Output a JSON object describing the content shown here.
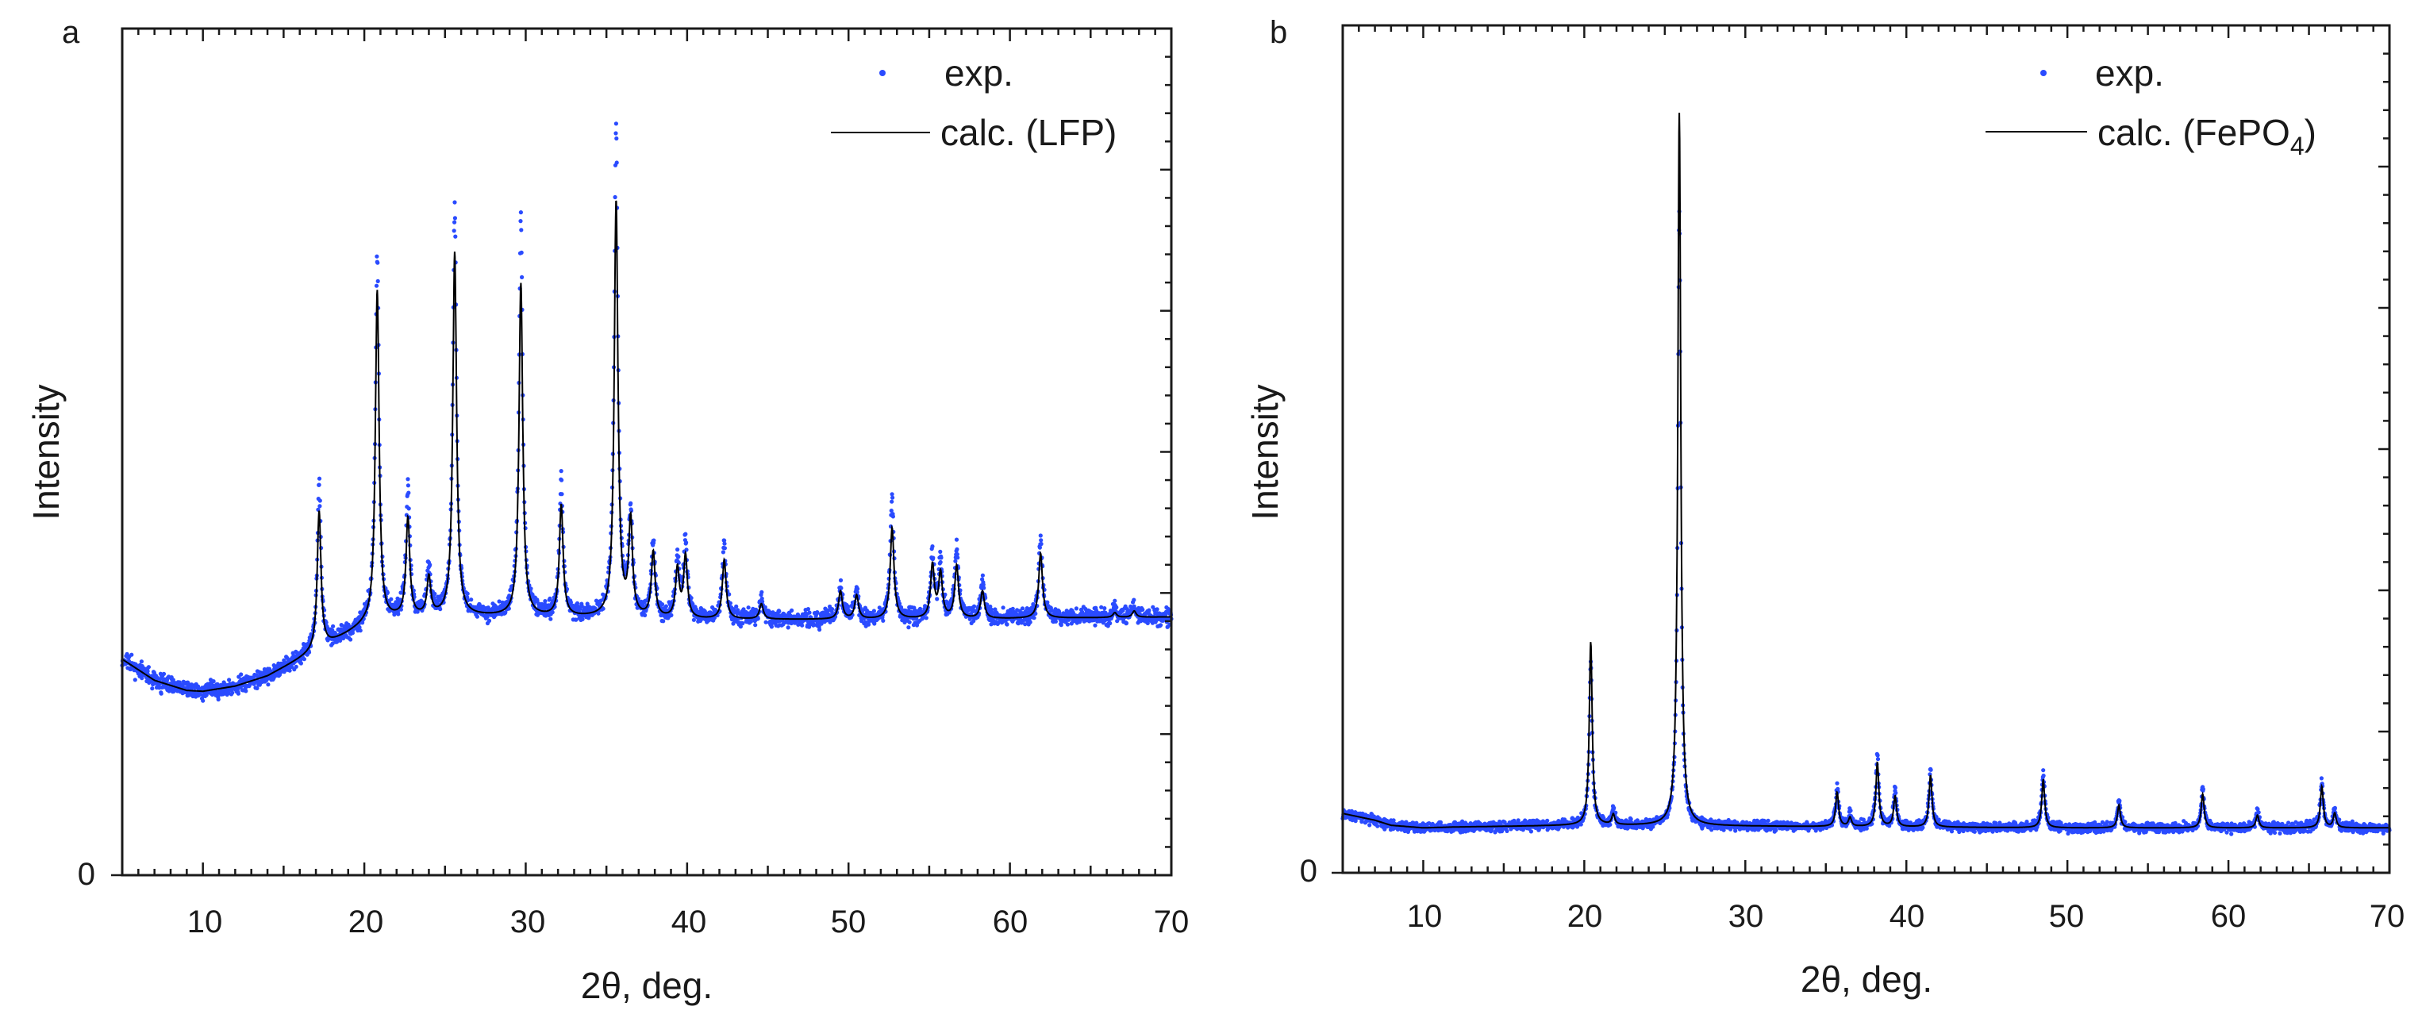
{
  "colors": {
    "exp": "#2a4bff",
    "calc": "#000000",
    "axis": "#1a1a1a"
  },
  "chart_data": [
    {
      "type": "scatter",
      "panel_label": "a",
      "title": "",
      "xlabel": "2θ, deg.",
      "ylabel": "Intensity",
      "xlim": [
        5,
        70
      ],
      "ylim": [
        0,
        100
      ],
      "xticks": [
        10,
        20,
        30,
        40,
        50,
        60,
        70
      ],
      "yticks": [
        0
      ],
      "legend_position": "top-right",
      "legend": {
        "exp": "exp.",
        "calc_prefix": "calc. (LFP)",
        "calc_sub": "",
        "calc_suffix": ""
      },
      "baseline": {
        "x": [
          5,
          7,
          9,
          10,
          12,
          14,
          16,
          18,
          20,
          22,
          25,
          30,
          35,
          40,
          50,
          60,
          70
        ],
        "y": [
          25.5,
          23.0,
          21.8,
          21.7,
          22.3,
          23.5,
          25.5,
          27.5,
          29.5,
          30.3,
          30.6,
          30.5,
          30.4,
          30.2,
          30.2,
          30.3,
          30.5
        ]
      },
      "peaks": [
        {
          "pos": 17.2,
          "calc": 43.0,
          "exp": 46.0
        },
        {
          "pos": 20.8,
          "calc": 69.0,
          "exp": 73.0
        },
        {
          "pos": 22.7,
          "calc": 42.0,
          "exp": 45.5
        },
        {
          "pos": 24.0,
          "calc": 35.0,
          "exp": 36.5
        },
        {
          "pos": 25.6,
          "calc": 73.5,
          "exp": 79.0
        },
        {
          "pos": 29.7,
          "calc": 69.8,
          "exp": 77.0
        },
        {
          "pos": 32.2,
          "calc": 43.6,
          "exp": 46.5
        },
        {
          "pos": 35.6,
          "calc": 79.5,
          "exp": 88.3
        },
        {
          "pos": 36.5,
          "calc": 41.5,
          "exp": 42.5
        },
        {
          "pos": 37.9,
          "calc": 38.0,
          "exp": 39.0
        },
        {
          "pos": 39.4,
          "calc": 36.0,
          "exp": 37.5
        },
        {
          "pos": 39.9,
          "calc": 37.5,
          "exp": 39.0
        },
        {
          "pos": 42.3,
          "calc": 37.2,
          "exp": 39.0
        },
        {
          "pos": 44.6,
          "calc": 32.0,
          "exp": 32.5
        },
        {
          "pos": 49.5,
          "calc": 33.5,
          "exp": 34.0
        },
        {
          "pos": 50.5,
          "calc": 33.0,
          "exp": 33.5
        },
        {
          "pos": 52.7,
          "calc": 41.0,
          "exp": 44.5
        },
        {
          "pos": 55.2,
          "calc": 36.5,
          "exp": 37.5
        },
        {
          "pos": 55.7,
          "calc": 35.5,
          "exp": 36.5
        },
        {
          "pos": 56.7,
          "calc": 36.5,
          "exp": 39.0
        },
        {
          "pos": 58.3,
          "calc": 33.5,
          "exp": 34.5
        },
        {
          "pos": 61.9,
          "calc": 38.0,
          "exp": 39.5
        },
        {
          "pos": 66.5,
          "calc": 31.0,
          "exp": 31.5
        },
        {
          "pos": 67.7,
          "calc": 31.2,
          "exp": 31.7
        }
      ]
    },
    {
      "type": "scatter",
      "panel_label": "b",
      "title": "",
      "xlabel": "2θ, deg.",
      "ylabel": "Intensity",
      "xlim": [
        5,
        70
      ],
      "ylim": [
        0,
        100
      ],
      "xticks": [
        10,
        20,
        30,
        40,
        50,
        60,
        70
      ],
      "yticks": [
        0
      ],
      "legend_position": "top-right",
      "legend": {
        "exp": "exp.",
        "calc_prefix": "calc. (FePO",
        "calc_sub": "4",
        "calc_suffix": ")"
      },
      "baseline": {
        "x": [
          5,
          6,
          7,
          8,
          10,
          12,
          20,
          30,
          40,
          50,
          60,
          70
        ],
        "y": [
          7.0,
          6.6,
          6.2,
          5.6,
          5.3,
          5.4,
          5.6,
          5.5,
          5.4,
          5.3,
          5.3,
          5.3
        ]
      },
      "peaks": [
        {
          "pos": 20.4,
          "calc": 27.2,
          "exp": 25.0
        },
        {
          "pos": 21.8,
          "calc": 6.8,
          "exp": 7.5
        },
        {
          "pos": 25.9,
          "calc": 89.7,
          "exp": 78.0
        },
        {
          "pos": 35.7,
          "calc": 9.5,
          "exp": 10.0
        },
        {
          "pos": 36.5,
          "calc": 6.5,
          "exp": 7.0
        },
        {
          "pos": 38.2,
          "calc": 13.0,
          "exp": 14.0
        },
        {
          "pos": 39.3,
          "calc": 9.0,
          "exp": 9.8
        },
        {
          "pos": 41.5,
          "calc": 11.5,
          "exp": 12.2
        },
        {
          "pos": 48.5,
          "calc": 11.0,
          "exp": 11.8
        },
        {
          "pos": 53.2,
          "calc": 8.0,
          "exp": 8.5
        },
        {
          "pos": 58.4,
          "calc": 9.3,
          "exp": 10.0
        },
        {
          "pos": 61.8,
          "calc": 6.8,
          "exp": 7.3
        },
        {
          "pos": 65.8,
          "calc": 10.2,
          "exp": 11.0
        },
        {
          "pos": 66.6,
          "calc": 7.0,
          "exp": 7.5
        }
      ]
    }
  ]
}
